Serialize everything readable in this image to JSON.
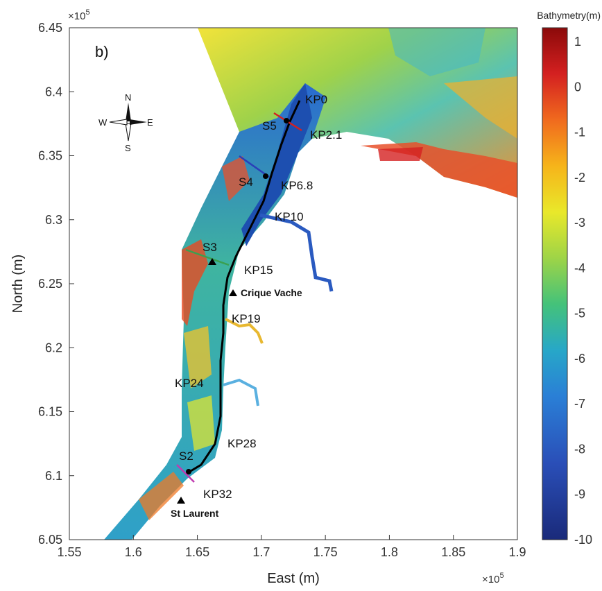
{
  "figure": {
    "panel_label": "b)",
    "x_axis": {
      "label": "East (m)",
      "multiplier": "×10",
      "exponent": "5",
      "ticks": [
        "1.55",
        "1.6",
        "1.65",
        "1.7",
        "1.75",
        "1.8",
        "1.85",
        "1.9"
      ]
    },
    "y_axis": {
      "label": "North (m)",
      "multiplier": "×10",
      "exponent": "5",
      "ticks": [
        "6.05",
        "6.1",
        "6.15",
        "6.2",
        "6.25",
        "6.3",
        "6.35",
        "6.4",
        "6.45"
      ]
    },
    "colorbar": {
      "title": "Bathymetry(m)",
      "ticks": [
        "1",
        "0",
        "-1",
        "-2",
        "-3",
        "-4",
        "-5",
        "-6",
        "-7",
        "-8",
        "-9",
        "-10"
      ],
      "range": [
        -10,
        1
      ],
      "colors": [
        "#8b0a0a",
        "#d42020",
        "#f06a1e",
        "#f6b41a",
        "#e9e82a",
        "#9ed447",
        "#44c27a",
        "#27a7c8",
        "#2a7fd6",
        "#2a4fb8",
        "#1a2a7a"
      ]
    },
    "compass": {
      "north": "N",
      "south": "S",
      "east": "E",
      "west": "W"
    },
    "sections": [
      "S5",
      "S4",
      "S3",
      "S2"
    ],
    "kilometer_points": [
      "KP0",
      "KP2.1",
      "KP6.8",
      "KP10",
      "KP15",
      "KP19",
      "KP24",
      "KP28",
      "KP32"
    ],
    "stations": [
      "Crique Vache",
      "St Laurent"
    ],
    "colors": {
      "deep": "#1d3f9e",
      "shallow": "#e33a1f",
      "mid": "#5fc86a",
      "land": "#ffffff",
      "thalweg": "#000000"
    }
  }
}
